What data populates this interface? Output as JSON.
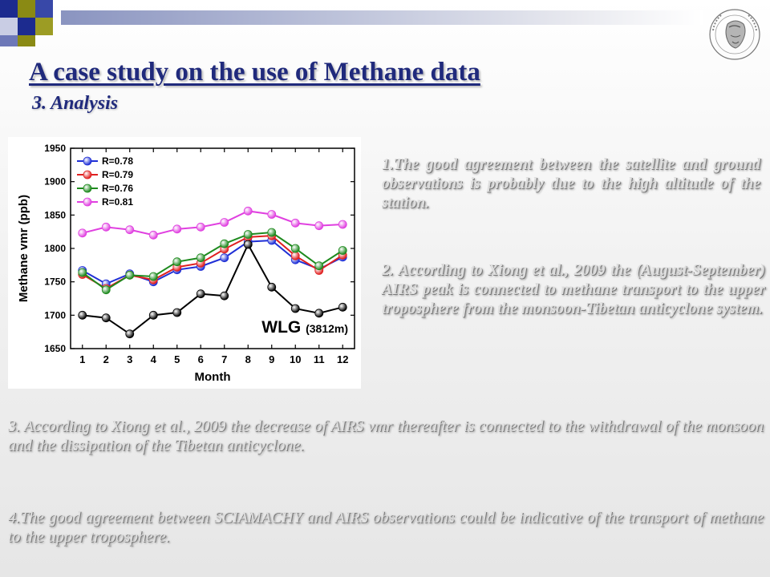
{
  "header": {
    "title": "A case study on the use of Methane data",
    "subtitle": "3. Analysis"
  },
  "theme": {
    "title_color": "#202a7c",
    "deco_colors": [
      "#1c2b8f",
      "#8a8a14",
      "#ffffff"
    ]
  },
  "logo": {
    "icon": "university-seal-icon"
  },
  "chart_data": {
    "type": "line",
    "x": [
      1,
      2,
      3,
      4,
      5,
      6,
      7,
      8,
      9,
      10,
      11,
      12
    ],
    "xlabel": "Month",
    "ylabel": "Methane vmr (ppb)",
    "xlim": [
      0.5,
      12.5
    ],
    "ylim": [
      1650,
      1950
    ],
    "yticks": [
      1650,
      1700,
      1750,
      1800,
      1850,
      1900,
      1950
    ],
    "grid": false,
    "legend_position": "top-left",
    "station_label": "WLG",
    "station_altitude": "(3812m)",
    "series": [
      {
        "name": "R=0.78",
        "color": "#1f2fd6",
        "values": [
          1767,
          1747,
          1762,
          1750,
          1768,
          1773,
          1786,
          1810,
          1812,
          1783,
          1769,
          1787
        ]
      },
      {
        "name": "R=0.79",
        "color": "#e02020",
        "values": [
          1761,
          1740,
          1760,
          1753,
          1772,
          1778,
          1799,
          1817,
          1819,
          1789,
          1767,
          1790
        ]
      },
      {
        "name": "R=0.76",
        "color": "#1e8a1e",
        "values": [
          1764,
          1738,
          1760,
          1758,
          1780,
          1786,
          1807,
          1821,
          1824,
          1800,
          1774,
          1797
        ]
      },
      {
        "name": "R=0.81",
        "color": "#e040e0",
        "values": [
          1823,
          1832,
          1828,
          1820,
          1829,
          1832,
          1839,
          1856,
          1851,
          1838,
          1834,
          1836
        ]
      },
      {
        "name": "",
        "color": "#000000",
        "values": [
          1700,
          1696,
          1672,
          1700,
          1704,
          1732,
          1729,
          1806,
          1742,
          1710,
          1703,
          1712
        ]
      }
    ]
  },
  "paragraphs": {
    "p1": "1.The good agreement between the satellite and ground observations is probably due to the high altitude of the station.",
    "p2": "2. According to Xiong et al., 2009 the (August-September) AIRS peak is connected to methane transport to the upper troposphere from the monsoon-Tibetan anticyclone system.",
    "p3": "3. According to Xiong et al., 2009 the decrease of AIRS vmr thereafter is connected to the withdrawal of the monsoon and the dissipation of the Tibetan anticyclone.",
    "p4": "4.The good agreement between SCIAMACHY and AIRS observations could be indicative of the transport of methane to the upper troposphere."
  }
}
